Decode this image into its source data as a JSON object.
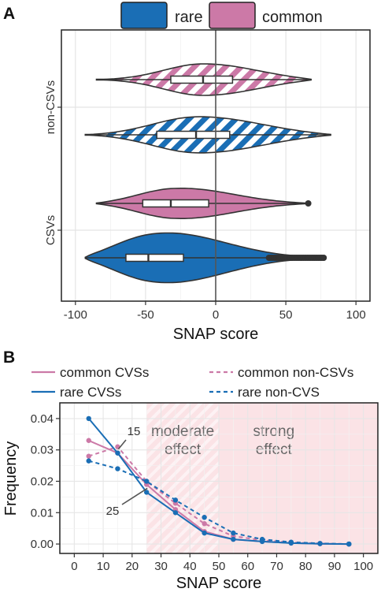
{
  "chart_data": [
    {
      "panel_label": "A",
      "type": "violin",
      "xlabel": "SNAP score",
      "ylabel": "",
      "xlim": [
        -110,
        110
      ],
      "xticks": [
        -100,
        -50,
        0,
        50,
        100
      ],
      "xtick_labels": [
        "-100",
        "-50",
        "0",
        "50",
        "100"
      ],
      "vline": 0,
      "grid": true,
      "legend": {
        "placement": "top",
        "entries": [
          {
            "label": "rare",
            "color": "#1a6eb5"
          },
          {
            "label": "common",
            "color": "#cc79a7"
          }
        ]
      },
      "groups": [
        {
          "label": "non-CSVs",
          "items": [
            {
              "series": "common",
              "hatched": true,
              "min": -85,
              "q1": -32,
              "median": -9,
              "q3": 12,
              "max": 68
            },
            {
              "series": "rare",
              "hatched": true,
              "min": -93,
              "q1": -42,
              "median": -14,
              "q3": 10,
              "max": 82
            }
          ]
        },
        {
          "label": "CSVs",
          "items": [
            {
              "series": "common",
              "hatched": false,
              "min": -85,
              "q1": -52,
              "median": -32,
              "q3": -5,
              "max": 66
            },
            {
              "series": "rare",
              "hatched": false,
              "min": -93,
              "q1": -64,
              "median": -48,
              "q3": -23,
              "max": 77,
              "outliers_from": 38
            }
          ]
        }
      ]
    },
    {
      "panel_label": "B",
      "type": "line",
      "xlabel": "SNAP score",
      "ylabel": "Frequency",
      "xlim": [
        -5,
        105
      ],
      "ylim": [
        -0.003,
        0.045
      ],
      "xticks": [
        0,
        10,
        20,
        30,
        40,
        50,
        60,
        70,
        80,
        90,
        100
      ],
      "yticks": [
        0.0,
        0.01,
        0.02,
        0.03,
        0.04
      ],
      "ytick_labels": [
        "0.00",
        "0.01",
        "0.02",
        "0.03",
        "0.04"
      ],
      "grid": true,
      "x": [
        5,
        15,
        25,
        35,
        45,
        55,
        65,
        75,
        85,
        95
      ],
      "series": [
        {
          "name": "common CVSs",
          "color": "#cc79a7",
          "dashed": false,
          "values": [
            0.033,
            0.029,
            0.019,
            0.011,
            0.004,
            0.0015,
            0.0008,
            0.0003,
            0.0001,
            0.0
          ]
        },
        {
          "name": "common non-CSVs",
          "color": "#cc79a7",
          "dashed": true,
          "values": [
            0.028,
            0.031,
            0.02,
            0.013,
            0.0065,
            0.0025,
            0.0012,
            0.0005,
            0.0002,
            0.0
          ]
        },
        {
          "name": "rare CVSs",
          "color": "#1a6eb5",
          "dashed": false,
          "values": [
            0.04,
            0.029,
            0.0165,
            0.01,
            0.0035,
            0.0015,
            0.0008,
            0.0003,
            0.0001,
            0.0
          ]
        },
        {
          "name": "rare non-CVS",
          "color": "#1a6eb5",
          "dashed": true,
          "values": [
            0.0265,
            0.024,
            0.02,
            0.014,
            0.0085,
            0.0035,
            0.0015,
            0.0006,
            0.0002,
            0.0
          ]
        }
      ],
      "regions": [
        {
          "label_lines": [
            "moderate",
            "effect"
          ],
          "from": 25,
          "to": 50,
          "hatched": true
        },
        {
          "label_lines": [
            "strong",
            "effect"
          ],
          "from": 50,
          "to": 105,
          "hatched": false
        }
      ],
      "annotations": [
        {
          "text": "15",
          "at_x": 15,
          "at_y": 0.029
        },
        {
          "text": "25",
          "at_x": 25,
          "at_y": 0.019
        }
      ],
      "legend_placement": "top"
    }
  ]
}
